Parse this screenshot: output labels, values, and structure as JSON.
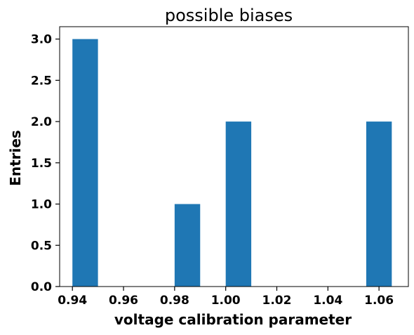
{
  "chart_data": {
    "type": "bar",
    "title": "possible biases",
    "xlabel": "voltage calibration parameter",
    "ylabel": "Entries",
    "bar_color": "#1f77b4",
    "xlim": [
      0.935,
      1.0715
    ],
    "ylim": [
      0,
      3.15
    ],
    "bins": [
      {
        "x0": 0.94,
        "x1": 0.95,
        "count": 3
      },
      {
        "x0": 0.95,
        "x1": 0.96,
        "count": 0
      },
      {
        "x0": 0.96,
        "x1": 0.97,
        "count": 0
      },
      {
        "x0": 0.98,
        "x1": 0.99,
        "count": 1
      },
      {
        "x0": 0.99,
        "x1": 1.0,
        "count": 0
      },
      {
        "x0": 1.0,
        "x1": 1.01,
        "count": 2
      },
      {
        "x0": 1.01,
        "x1": 1.02,
        "count": 0
      },
      {
        "x0": 1.02,
        "x1": 1.03,
        "count": 0
      },
      {
        "x0": 1.03,
        "x1": 1.04,
        "count": 0
      },
      {
        "x0": 1.055,
        "x1": 1.065,
        "count": 2
      }
    ],
    "x_ticks": [
      {
        "value": 0.94,
        "label": "0.94"
      },
      {
        "value": 0.96,
        "label": "0.96"
      },
      {
        "value": 0.98,
        "label": "0.98"
      },
      {
        "value": 1.0,
        "label": "1.00"
      },
      {
        "value": 1.02,
        "label": "1.02"
      },
      {
        "value": 1.04,
        "label": "1.04"
      },
      {
        "value": 1.06,
        "label": "1.06"
      }
    ],
    "y_ticks": [
      {
        "value": 0.0,
        "label": "0.0"
      },
      {
        "value": 0.5,
        "label": "0.5"
      },
      {
        "value": 1.0,
        "label": "1.0"
      },
      {
        "value": 1.5,
        "label": "1.5"
      },
      {
        "value": 2.0,
        "label": "2.0"
      },
      {
        "value": 2.5,
        "label": "2.5"
      },
      {
        "value": 3.0,
        "label": "3.0"
      }
    ],
    "grid": false,
    "legend": "none"
  }
}
